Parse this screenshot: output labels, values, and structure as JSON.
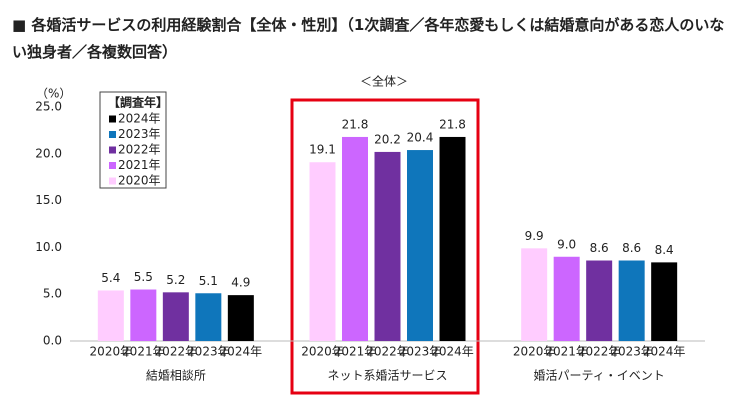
{
  "chart_data": {
    "type": "bar",
    "title": "■ 各婚活サービスの利用経験割合【全体・性別】（1次調査／各年恋愛もしくは結婚意向がある恋人のいない独身者／各複数回答）",
    "subtitle": "＜全体＞",
    "y_unit": "（%）",
    "legend_title": "【調査年】",
    "categories": [
      "結婚相談所",
      "ネット系婚活サービス",
      "婚活パーティ・イベント"
    ],
    "series": [
      {
        "name": "2024年",
        "color": "#000000",
        "values": [
          4.9,
          21.8,
          8.4
        ]
      },
      {
        "name": "2023年",
        "color": "#0f76bb",
        "values": [
          5.1,
          20.4,
          8.6
        ]
      },
      {
        "name": "2022年",
        "color": "#7030a0",
        "values": [
          5.2,
          20.2,
          8.6
        ]
      },
      {
        "name": "2021年",
        "color": "#cc66ff",
        "values": [
          5.5,
          21.8,
          9.0
        ],
        "value_labels": [
          "5.5",
          "21.8",
          "9.0"
        ]
      },
      {
        "name": "2020年",
        "color": "#ffccff",
        "values": [
          5.4,
          19.1,
          9.9
        ]
      }
    ],
    "ylim": [
      0,
      25
    ],
    "yticks": [
      {
        "value": 0,
        "label": "0.0"
      },
      {
        "value": 5,
        "label": "5.0"
      },
      {
        "value": 10,
        "label": "10.0"
      },
      {
        "value": 15,
        "label": "15.0"
      },
      {
        "value": 20,
        "label": "20.0"
      },
      {
        "value": 25,
        "label": "25.0"
      }
    ],
    "grid": false
  }
}
